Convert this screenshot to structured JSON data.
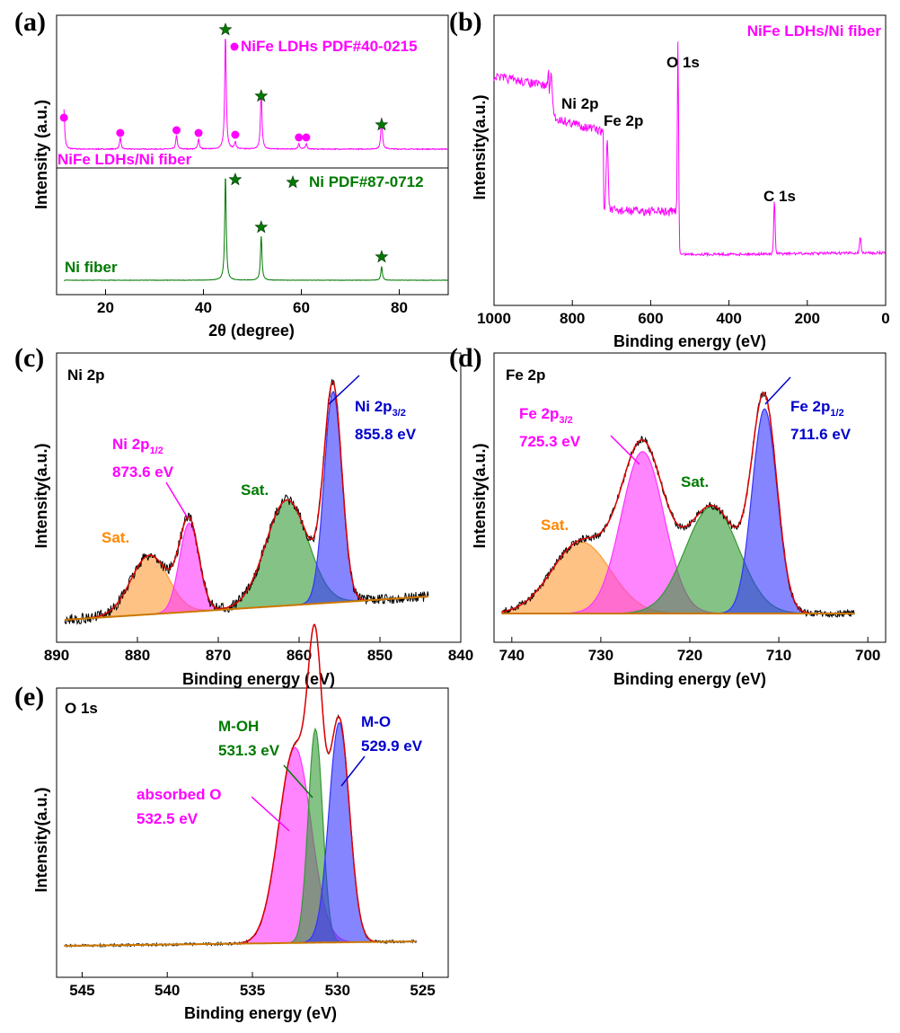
{
  "chart_data": [
    {
      "panel": "(a)",
      "type": "line",
      "xlabel": "2θ (degree)",
      "ylabel": "Intensity (a.u.)",
      "xlim": [
        10,
        90
      ],
      "xticks": [
        20,
        40,
        60,
        80
      ],
      "series": [
        {
          "name": "NiFe LDHs/Ni fiber",
          "color": "#ff00ff",
          "baseline": 0.12,
          "peaks": [
            [
              11.5,
              0.35
            ],
            [
              23.0,
              0.1
            ],
            [
              34.5,
              0.12
            ],
            [
              39.0,
              0.09
            ],
            [
              44.5,
              1.0
            ],
            [
              46.5,
              0.06
            ],
            [
              51.8,
              0.5
            ],
            [
              59.5,
              0.05
            ],
            [
              61.0,
              0.05
            ],
            [
              76.4,
              0.28
            ]
          ],
          "annotation": "NiFe LDHs PDF#40-0215",
          "label": "NiFe LDHs/Ni fiber"
        },
        {
          "name": "Ni fiber",
          "color": "#007a00",
          "baseline": 0.0,
          "peaks": [
            [
              44.5,
              1.0
            ],
            [
              51.8,
              0.42
            ],
            [
              76.4,
              0.13
            ]
          ],
          "annotation": "Ni PDF#87-0712",
          "label": "Ni fiber"
        }
      ],
      "markers": {
        "circle_positions": [
          11.5,
          23.0,
          34.5,
          39.0,
          46.5,
          59.5,
          61.0
        ],
        "star_upper_positions": [
          44.5,
          51.8,
          76.4
        ],
        "star_lower_positions": [
          46.5,
          51.8,
          76.4
        ]
      }
    },
    {
      "panel": "(b)",
      "type": "line",
      "title": "NiFe LDHs/Ni fiber",
      "xlabel": "Binding energy (eV)",
      "ylabel": "Intensity(a.u.)",
      "xlim": [
        1000,
        0
      ],
      "xticks": [
        1000,
        800,
        600,
        400,
        200,
        0
      ],
      "peak_labels": [
        {
          "label": "Ni 2p",
          "x": 855
        },
        {
          "label": "Fe 2p",
          "x": 711
        },
        {
          "label": "O 1s",
          "x": 530
        },
        {
          "label": "C 1s",
          "x": 284
        }
      ]
    },
    {
      "panel": "(c)",
      "type": "area",
      "title": "Ni 2p",
      "xlabel": "Binding energy (eV)",
      "ylabel": "Intensity(a.u.)",
      "xlim": [
        890,
        840
      ],
      "xticks": [
        890,
        880,
        870,
        860,
        850,
        840
      ],
      "components": [
        {
          "name": "Sat.",
          "center": 878.5,
          "height": 0.28,
          "sigma": 2.3,
          "color": "#ff9933"
        },
        {
          "name": "Ni 2p1/2",
          "center": 873.6,
          "height": 0.42,
          "sigma": 1.2,
          "color": "#ff33ff"
        },
        {
          "name": "Sat.",
          "center": 861.5,
          "height": 0.5,
          "sigma": 2.6,
          "color": "#339933"
        },
        {
          "name": "Ni 2p3/2",
          "center": 855.8,
          "height": 1.0,
          "sigma": 1.1,
          "color": "#3333ff"
        }
      ],
      "annotations": {
        "p32_label": "Ni 2p",
        "p32_sub": "3/2",
        "p32_ev": "855.8 eV",
        "p12_label": "Ni 2p",
        "p12_sub": "1/2",
        "p12_ev": "873.6 eV",
        "sat_green": "Sat.",
        "sat_orange": "Sat."
      }
    },
    {
      "panel": "(d)",
      "type": "area",
      "title": "Fe 2p",
      "xlabel": "Binding energy (eV)",
      "ylabel": "Intensity(a.u.)",
      "xlim": [
        742,
        698
      ],
      "xticks": [
        740,
        730,
        720,
        710,
        700
      ],
      "components": [
        {
          "name": "Sat.",
          "center": 732.2,
          "height": 0.3,
          "sigma": 3.3,
          "color": "#ff9933"
        },
        {
          "name": "Fe 2p3/2",
          "center": 725.3,
          "height": 0.68,
          "sigma": 2.4,
          "color": "#ff33ff"
        },
        {
          "name": "Sat.",
          "center": 717.5,
          "height": 0.45,
          "sigma": 3.0,
          "color": "#339933"
        },
        {
          "name": "Fe 2p1/2",
          "center": 711.6,
          "height": 0.86,
          "sigma": 1.4,
          "color": "#3333ff"
        }
      ],
      "annotations": {
        "p32_label": "Fe 2p",
        "p32_sub": "3/2",
        "p32_ev": "725.3 eV",
        "p12_label": "Fe 2p",
        "p12_sub": "1/2",
        "p12_ev": "711.6 eV",
        "sat_green": "Sat.",
        "sat_orange": "Sat."
      }
    },
    {
      "panel": "(e)",
      "type": "area",
      "title": "O 1s",
      "xlabel": "Binding energy (eV)",
      "ylabel": "Intensity(a.u.)",
      "xlim": [
        546.5,
        523.5
      ],
      "xticks": [
        545,
        540,
        535,
        530,
        525
      ],
      "components": [
        {
          "name": "absorbed O",
          "center": 532.5,
          "height": 0.64,
          "sigma": 0.95,
          "color": "#ff33ff"
        },
        {
          "name": "M-OH",
          "center": 531.3,
          "height": 0.7,
          "sigma": 0.42,
          "color": "#339933"
        },
        {
          "name": "M-O",
          "center": 529.9,
          "height": 0.72,
          "sigma": 0.6,
          "color": "#3333ff"
        }
      ],
      "annotations": {
        "mo_label": "M-O",
        "mo_ev": "529.9 eV",
        "moh_label": "M-OH",
        "moh_ev": "531.3 eV",
        "ao_label": "absorbed O",
        "ao_ev": "532.5 eV"
      }
    }
  ],
  "panel_labels": [
    "(a)",
    "(b)",
    "(c)",
    "(d)",
    "(e)"
  ]
}
